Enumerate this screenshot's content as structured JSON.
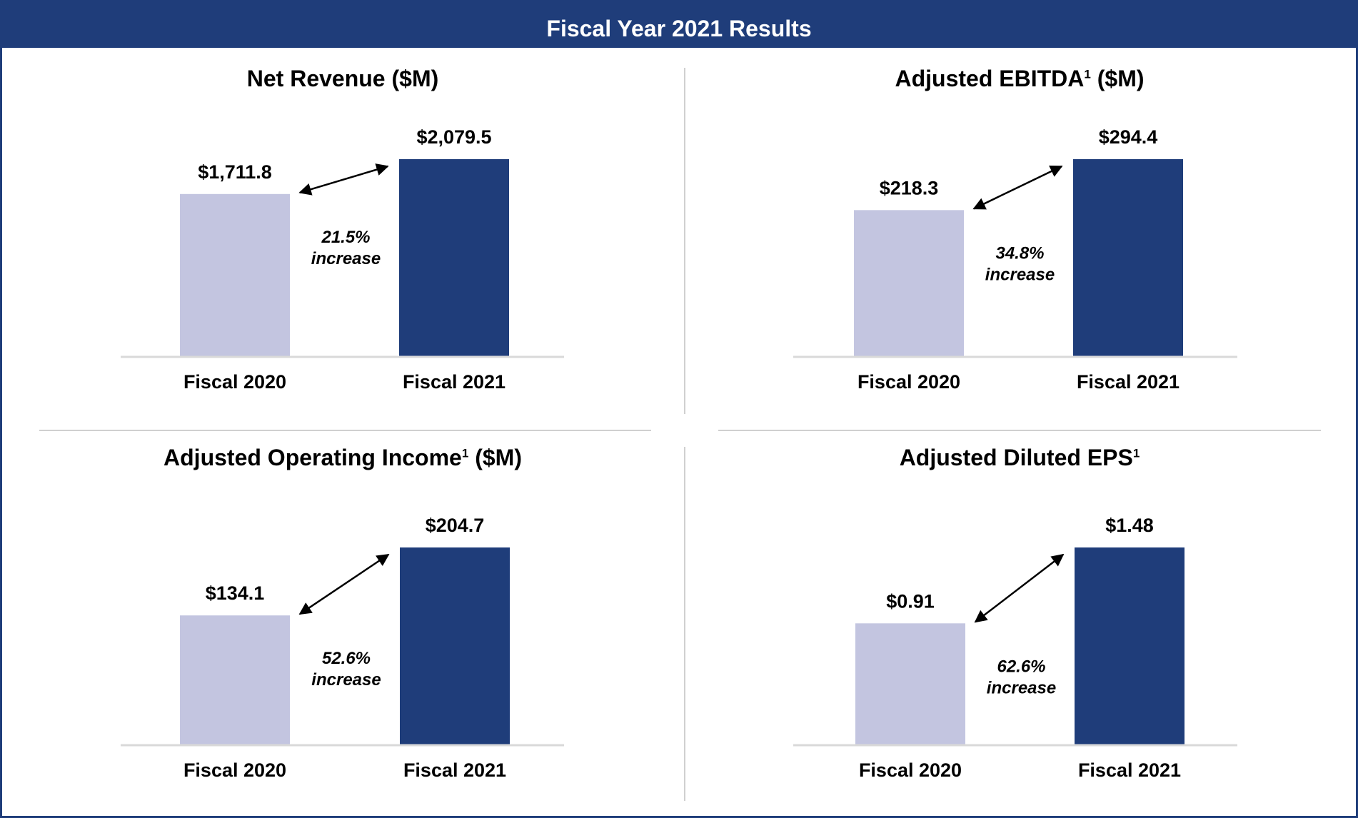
{
  "header": {
    "title": "Fiscal Year 2021 Results"
  },
  "colors": {
    "header": "#1f3d7a",
    "fiscal_2020": "#c3c5e0",
    "fiscal_2021": "#1f3d7a",
    "baseline": "#d9d9d9"
  },
  "chart_data": [
    {
      "type": "bar",
      "title": "Net Revenue ($M)",
      "title_main": "Net Revenue ($M)",
      "title_sup": "",
      "categories": [
        "Fiscal 2020",
        "Fiscal 2021"
      ],
      "values": [
        1711.8,
        2079.5
      ],
      "value_labels": [
        "$1,711.8",
        "$2,079.5"
      ],
      "change_pct": "21.5%",
      "change_word": "increase"
    },
    {
      "type": "bar",
      "title": "Adjusted EBITDA1 ($M)",
      "title_main": "Adjusted EBITDA",
      "title_sup": "1",
      "title_after": " ($M)",
      "categories": [
        "Fiscal 2020",
        "Fiscal 2021"
      ],
      "values": [
        218.3,
        294.4
      ],
      "value_labels": [
        "$218.3",
        "$294.4"
      ],
      "change_pct": "34.8%",
      "change_word": "increase"
    },
    {
      "type": "bar",
      "title": "Adjusted Operating Income1 ($M)",
      "title_main": "Adjusted Operating Income",
      "title_sup": "1",
      "title_after": " ($M)",
      "categories": [
        "Fiscal 2020",
        "Fiscal 2021"
      ],
      "values": [
        134.1,
        204.7
      ],
      "value_labels": [
        "$134.1",
        "$204.7"
      ],
      "change_pct": "52.6%",
      "change_word": "increase"
    },
    {
      "type": "bar",
      "title": "Adjusted Diluted EPS1",
      "title_main": "Adjusted Diluted EPS",
      "title_sup": "1",
      "title_after": "",
      "categories": [
        "Fiscal 2020",
        "Fiscal 2021"
      ],
      "values": [
        0.91,
        1.48
      ],
      "value_labels": [
        "$0.91",
        "$1.48"
      ],
      "change_pct": "62.6%",
      "change_word": "increase"
    }
  ]
}
